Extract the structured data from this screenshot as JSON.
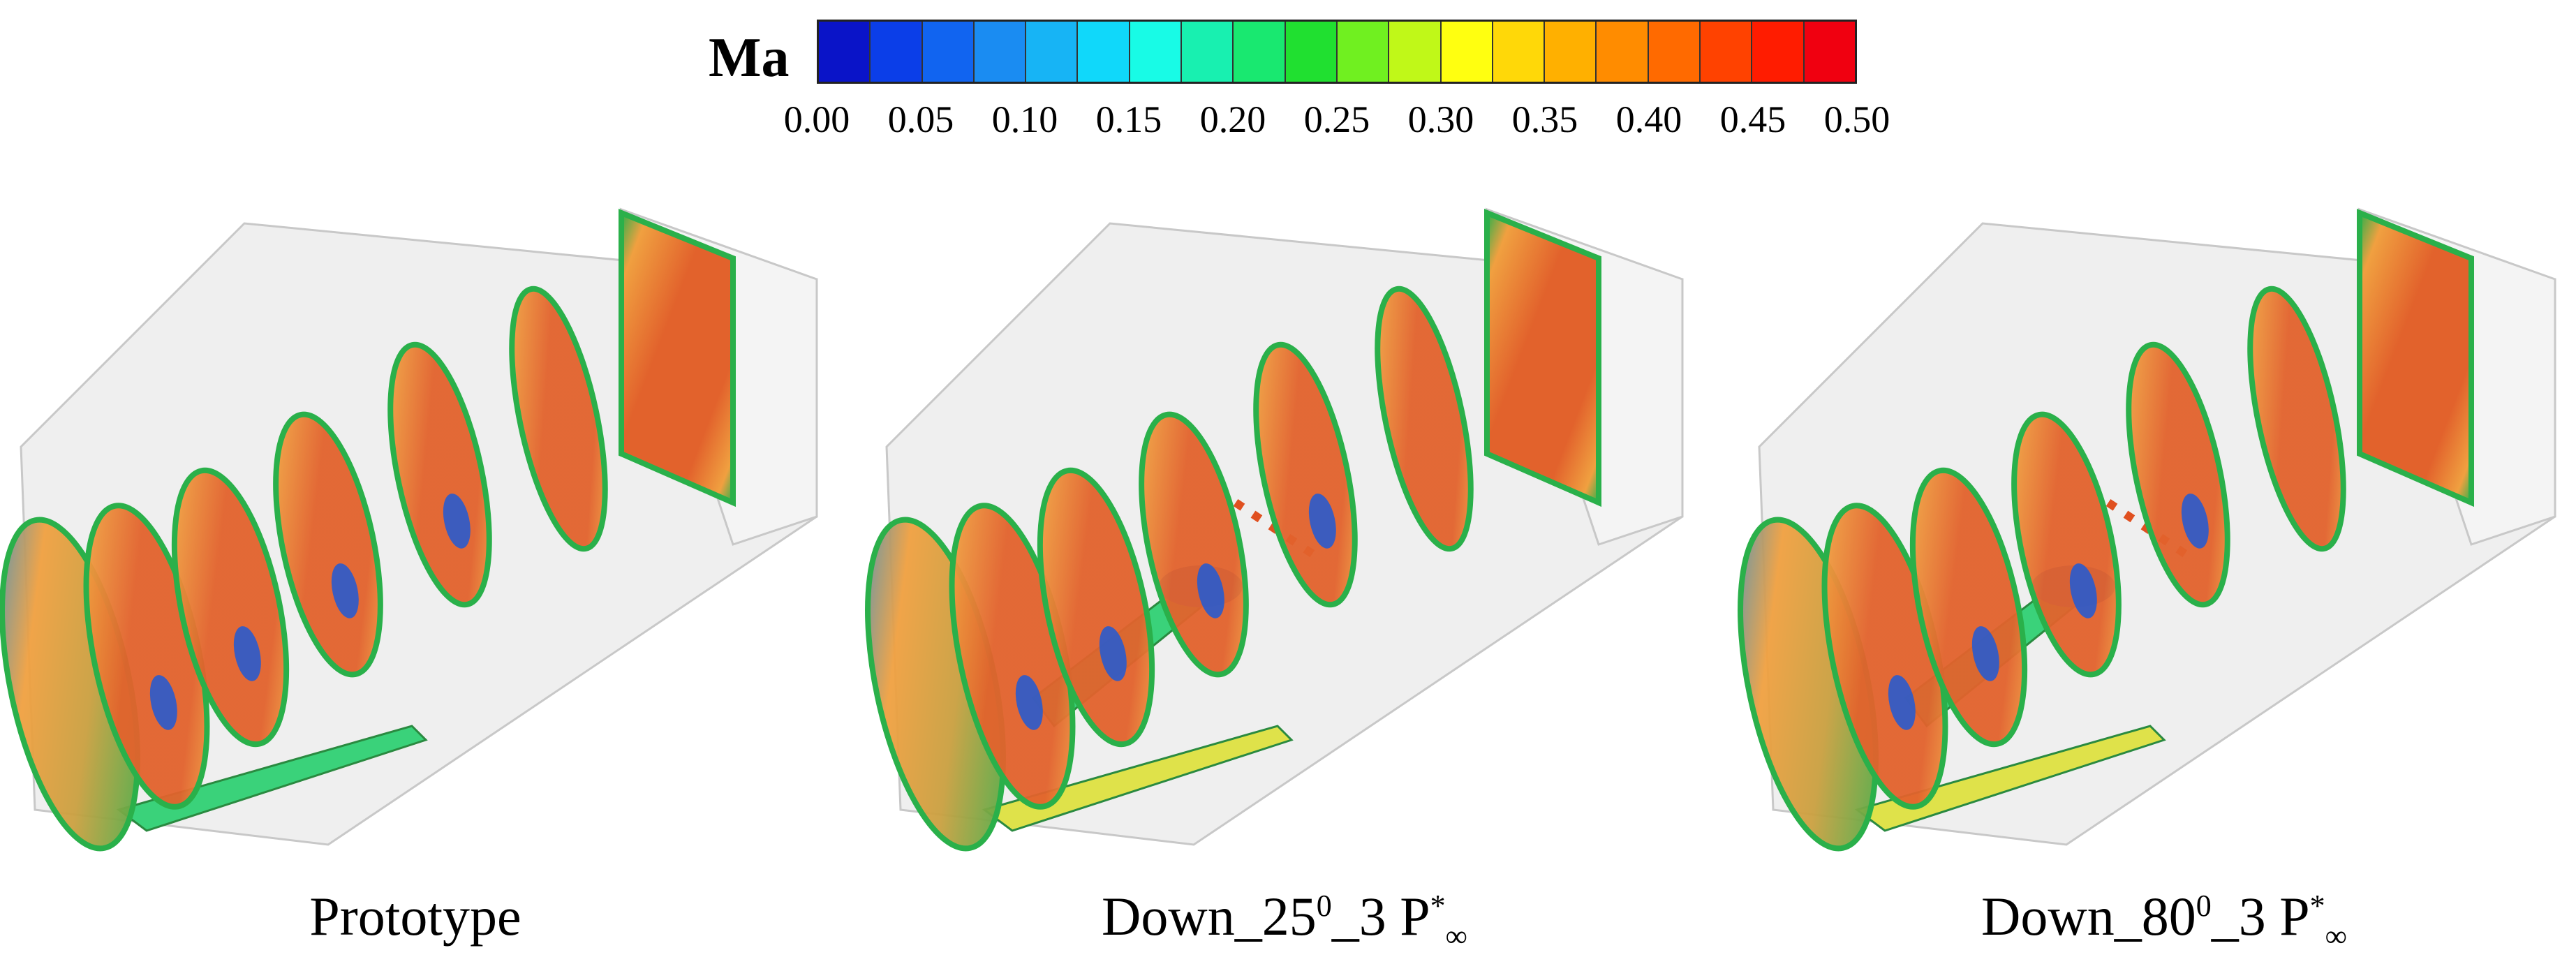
{
  "colorbar": {
    "title": "Ma",
    "ticks": [
      "0.00",
      "0.05",
      "0.10",
      "0.15",
      "0.20",
      "0.25",
      "0.30",
      "0.35",
      "0.40",
      "0.45",
      "0.50"
    ],
    "colors": [
      "#0a14c8",
      "#0b3ee8",
      "#1164f0",
      "#1a8cf2",
      "#17b4f5",
      "#10d8fa",
      "#18fbe6",
      "#18f0b0",
      "#19e870",
      "#20e030",
      "#70f020",
      "#c0f818",
      "#ffff10",
      "#ffd808",
      "#ffb000",
      "#ff8c00",
      "#ff6a00",
      "#ff4200",
      "#ff1c00",
      "#f00010"
    ]
  },
  "panels": [
    {
      "caption_main": "Prototype",
      "caption_sup": "",
      "caption_rest": "",
      "caption_sup2": "",
      "caption_sub": ""
    },
    {
      "caption_main": "Down_25",
      "caption_sup": "0",
      "caption_rest": "_3 P",
      "caption_sup2": "*",
      "caption_sub": "∞"
    },
    {
      "caption_main": "Down_80",
      "caption_sup": "0",
      "caption_rest": "_3 P",
      "caption_sup2": "*",
      "caption_sub": "∞"
    }
  ],
  "colors": {
    "duct": "#e9e9e9",
    "duct_edge": "#c8c8c8",
    "slice_core": "#e2622c",
    "slice_mid": "#f0a040",
    "slice_edge": "#2ab04a",
    "low_speed": "#1f5ad6",
    "vortex_green": "#3ad27a",
    "vortex_yellow": "#dfe24a"
  }
}
